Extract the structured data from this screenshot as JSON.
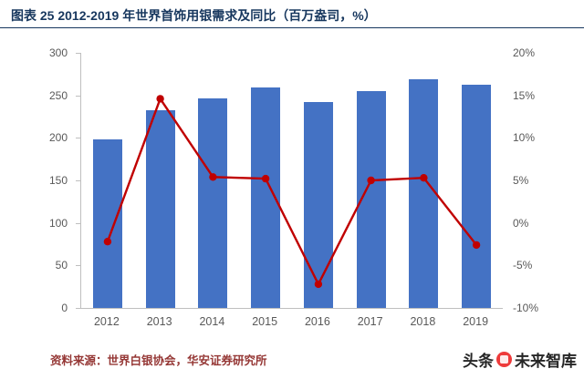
{
  "header": {
    "title": "图表 25 2012-2019 年世界首饰用银需求及同比（百万盎司，%）"
  },
  "chart_data": {
    "type": "bar+line",
    "title": "图表 25 2012-2019 年世界首饰用银需求及同比（百万盎司，%）",
    "categories": [
      "2012",
      "2013",
      "2014",
      "2015",
      "2016",
      "2017",
      "2018",
      "2019"
    ],
    "series": [
      {
        "name": "世界首饰用银需求（百万盎司）",
        "type": "bar",
        "axis": "left",
        "values": [
          198,
          233,
          246,
          259,
          242,
          255,
          269,
          262
        ]
      },
      {
        "name": "同比（%）",
        "type": "line",
        "axis": "right",
        "values": [
          -2.2,
          14.6,
          5.4,
          5.2,
          -7.2,
          5.0,
          5.3,
          -2.6
        ]
      }
    ],
    "left_axis": {
      "min": 0,
      "max": 300,
      "step": 50,
      "ticks": [
        "0",
        "50",
        "100",
        "150",
        "200",
        "250",
        "300"
      ]
    },
    "right_axis": {
      "min": -10,
      "max": 20,
      "step": 5,
      "ticks": [
        "-10%",
        "-5%",
        "0%",
        "5%",
        "10%",
        "15%",
        "20%"
      ]
    },
    "colors": {
      "bar": "#4472C4",
      "line": "#C00000"
    },
    "grid": false,
    "legend": false
  },
  "footer": {
    "source": "资料来源：世界白银协会，华安证券研究所",
    "watermark_prefix": "头条",
    "watermark_suffix": "未来智库"
  }
}
